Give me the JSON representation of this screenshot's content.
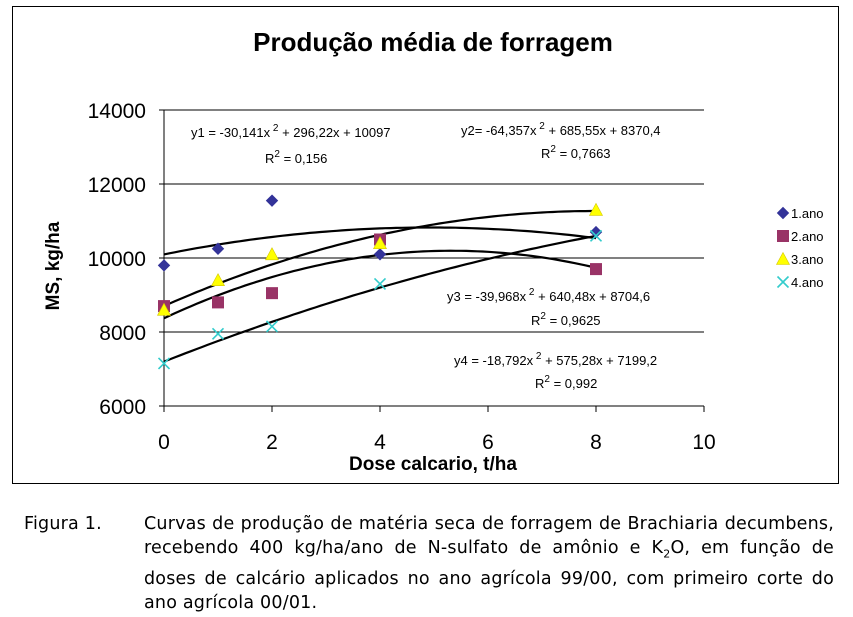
{
  "chart_data": {
    "type": "scatter",
    "title": "Produção média de forragem",
    "xlabel": "Dose calcario, t/ha",
    "ylabel": "MS, kg/ha",
    "xlim": [
      0,
      10
    ],
    "ylim": [
      6000,
      14000
    ],
    "x_ticks": [
      "0",
      "2",
      "4",
      "6",
      "8",
      "10"
    ],
    "y_ticks": [
      "6000",
      "8000",
      "10000",
      "12000",
      "14000"
    ],
    "grid": "horizontal",
    "legend_position": "right",
    "series": [
      {
        "name": "1.ano",
        "marker": "diamond",
        "color": "#333399",
        "x": [
          0,
          1,
          2,
          4,
          8
        ],
        "y": [
          9800,
          10250,
          11550,
          10100,
          10700
        ],
        "equation": "y1 = -30,141x2 + 296,22x + 10097",
        "r2": "R2 = 0,156",
        "fit": [
          -30.141,
          296.22,
          10097
        ]
      },
      {
        "name": "2.ano",
        "marker": "square",
        "color": "#993366",
        "x": [
          0,
          1,
          2,
          4,
          8
        ],
        "y": [
          8700,
          8800,
          9050,
          10500,
          9700
        ],
        "equation": "y2= -64,357x 2 + 685,55x + 8370,4",
        "r2": "R2 = 0,7663",
        "fit": [
          -64.357,
          685.55,
          8370.4
        ]
      },
      {
        "name": "3.ano",
        "marker": "triangle",
        "color": "#ffff00",
        "x": [
          0,
          1,
          2,
          4,
          8
        ],
        "y": [
          8600,
          9400,
          10100,
          10400,
          11300
        ],
        "equation": "y3 = -39,968x 2 + 640,48x + 8704,6",
        "r2": "R2 = 0,9625",
        "fit": [
          -39.968,
          640.48,
          8704.6
        ]
      },
      {
        "name": "4.ano",
        "marker": "x",
        "color": "#33cccc",
        "x": [
          0,
          1,
          2,
          4,
          8
        ],
        "y": [
          7150,
          7950,
          8150,
          9300,
          10600
        ],
        "equation": "y4 = -18,792x2 + 575,28x + 7199,2",
        "r2": "R2 = 0,992",
        "fit": [
          -18.792,
          575.28,
          7199.2
        ]
      }
    ]
  },
  "caption": {
    "label": "Figura 1.",
    "text": "Curvas de produção de matéria seca de forragem de Brachiaria decumbens, recebendo 400 kg/ha/ano de N-sulfato de amônio e K2O, em função de doses de calcário aplicados no ano agrícola 99/00, com primeiro corte do ano agrícola 00/01."
  }
}
